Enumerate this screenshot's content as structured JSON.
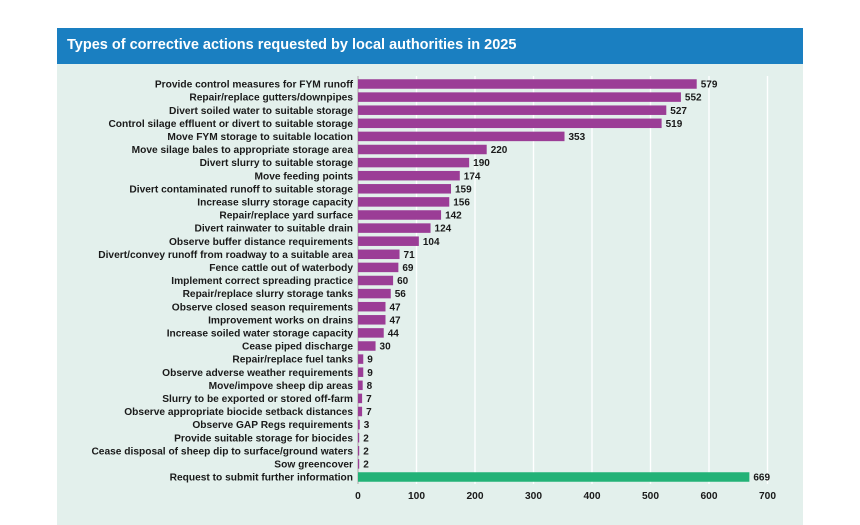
{
  "title": "Types of corrective actions requested by local authorities in 2025",
  "colors": {
    "header_bg": "#1a7fc1",
    "panel_bg": "#e3f0ec",
    "bar_default": "#9b3d96",
    "bar_highlight": "#23b277"
  },
  "chart_data": {
    "type": "bar",
    "orientation": "horizontal",
    "title": "Types of corrective actions requested by local authorities in 2025",
    "xlabel": "",
    "ylabel": "",
    "xlim": [
      0,
      700
    ],
    "xticks": [
      0,
      100,
      200,
      300,
      400,
      500,
      600,
      700
    ],
    "grid": "vertical",
    "categories": [
      "Provide control measures for FYM runoff",
      "Repair/replace gutters/downpipes",
      "Divert soiled water to suitable storage",
      "Control silage effluent or divert to suitable storage",
      "Move FYM storage to suitable location",
      "Move silage bales to appropriate storage area",
      "Divert slurry to suitable storage",
      "Move feeding points",
      "Divert contaminated runoff to suitable storage",
      "Increase slurry storage capacity",
      "Repair/replace yard surface",
      "Divert rainwater to suitable drain",
      "Observe buffer distance requirements",
      "Divert/convey runoff from roadway to a suitable area",
      "Fence cattle out of waterbody",
      "Implement correct spreading practice",
      "Repair/replace slurry storage tanks",
      "Observe closed season requirements",
      "Improvement works on drains",
      "Increase soiled water storage capacity",
      "Cease piped discharge",
      "Repair/replace fuel tanks",
      "Observe adverse weather requirements",
      "Move/impove sheep dip areas",
      "Slurry to be exported or stored off-farm",
      "Observe appropriate biocide setback distances",
      "Observe GAP Regs requirements",
      "Provide suitable storage for biocides",
      "Cease disposal of sheep dip to surface/ground waters",
      "Sow greencover",
      "Request to submit further information"
    ],
    "values": [
      579,
      552,
      527,
      519,
      353,
      220,
      190,
      174,
      159,
      156,
      142,
      124,
      104,
      71,
      69,
      60,
      56,
      47,
      47,
      44,
      30,
      9,
      9,
      8,
      7,
      7,
      3,
      2,
      2,
      2,
      669
    ],
    "highlight_index": 30
  }
}
